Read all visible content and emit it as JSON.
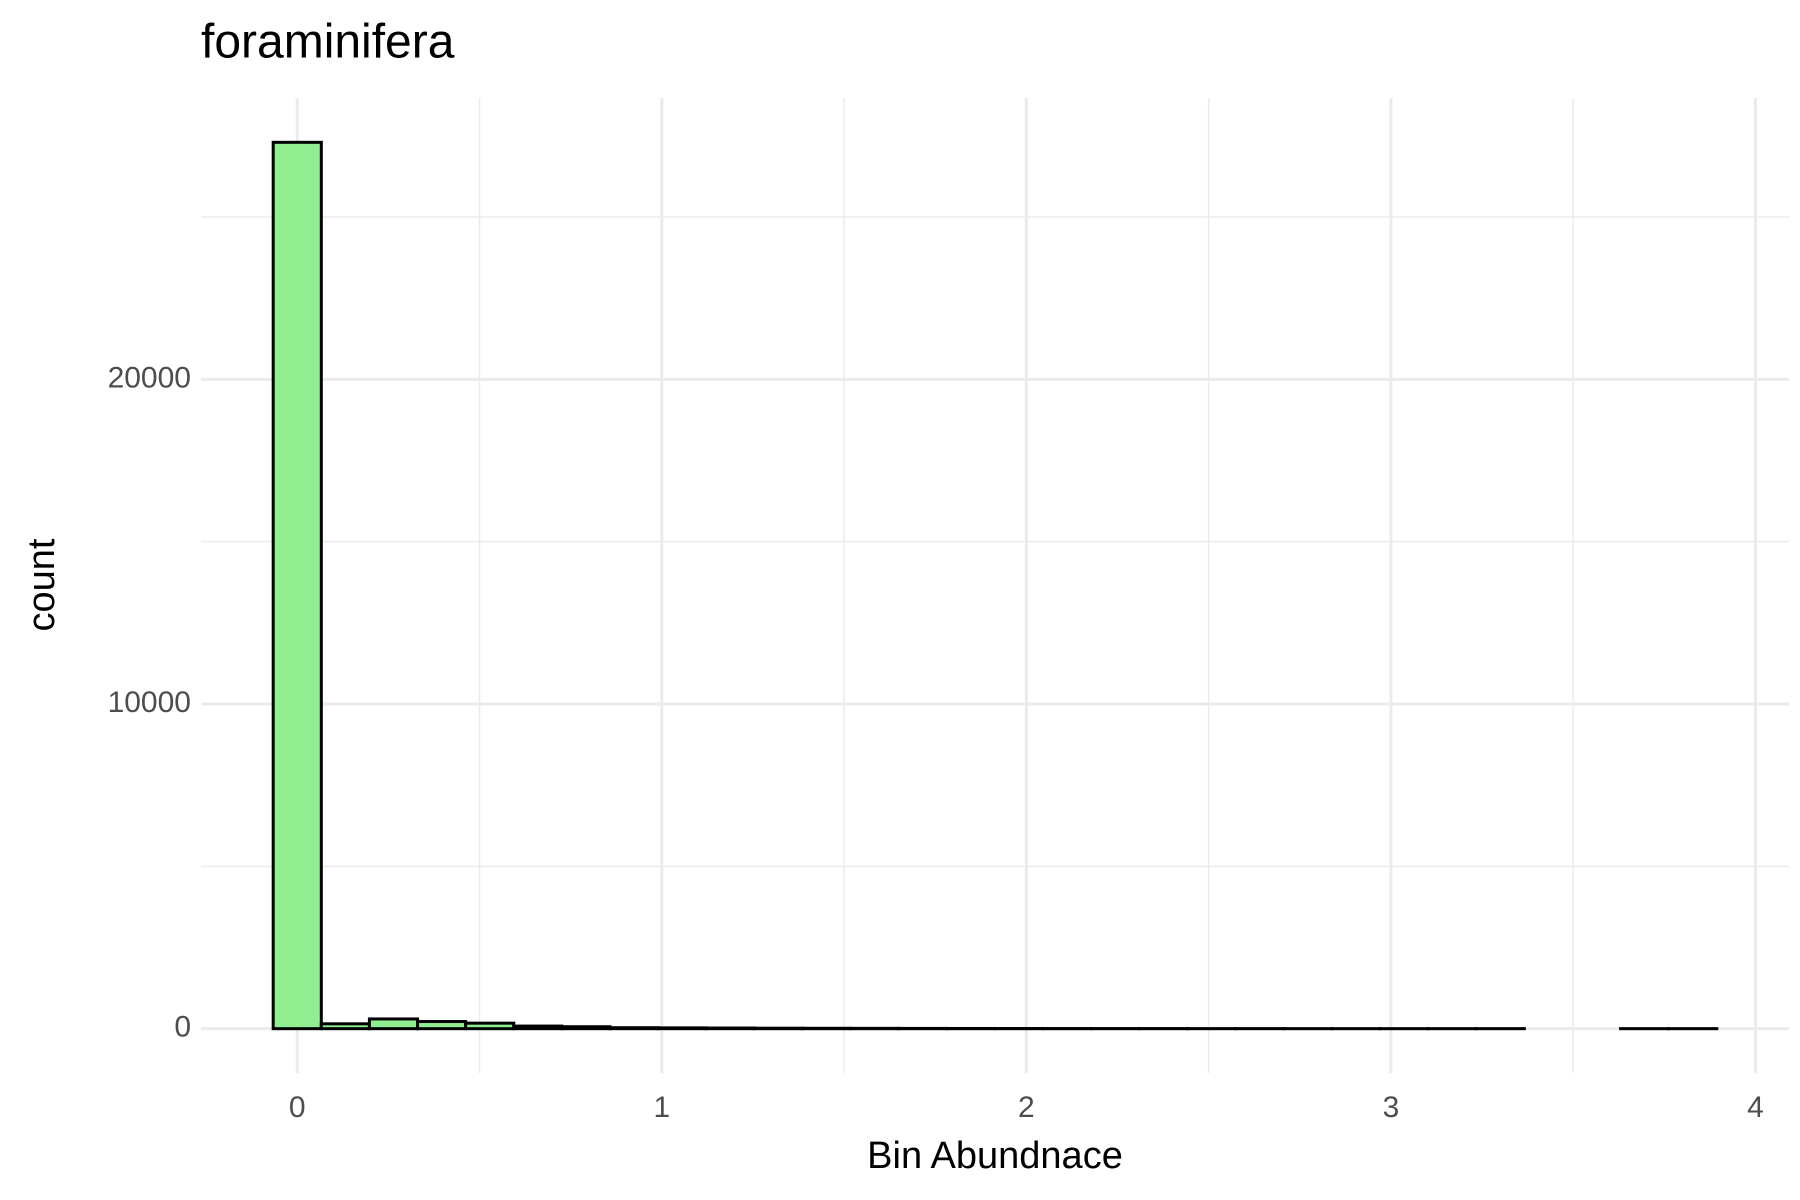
{
  "chart_data": {
    "type": "histogram",
    "title": "foraminifera",
    "x_label": "Bin Abundnace",
    "y_label": "count",
    "bins": [
      -0.066,
      0.066,
      0.198,
      0.33,
      0.462,
      0.594,
      0.726,
      0.858,
      0.99,
      1.122,
      1.254,
      1.386,
      1.518,
      1.65,
      1.782,
      1.914,
      2.046,
      2.178,
      2.31,
      2.442,
      2.574,
      2.706,
      2.838,
      2.97,
      3.102,
      3.234,
      3.366,
      3.498,
      3.63,
      3.762,
      3.894
    ],
    "counts": [
      27300,
      150,
      300,
      220,
      170,
      80,
      60,
      30,
      25,
      20,
      15,
      12,
      10,
      8,
      6,
      5,
      4,
      3,
      3,
      2,
      2,
      1,
      1,
      1,
      1,
      1,
      0,
      0,
      1,
      1
    ],
    "color": "#90ee90",
    "edge_color": "#000000",
    "xlim": [
      -0.264,
      4.092
    ],
    "xticks": [
      0,
      1,
      2,
      3,
      4
    ],
    "ylim": [
      -1365,
      28665
    ],
    "yticks": [
      0,
      10000,
      20000
    ],
    "grid": true
  }
}
